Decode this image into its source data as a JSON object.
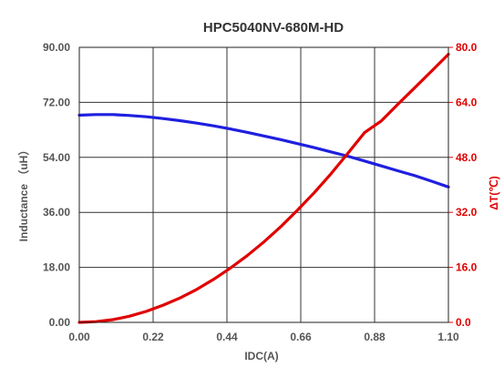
{
  "chart_data": {
    "type": "line",
    "title": "HPC5040NV-680M-HD",
    "xlabel": "IDC(A)",
    "ylabel": "Inductance （uH）",
    "y2label": "ΔT(℃)",
    "xlim": [
      0,
      1.1
    ],
    "ylim": [
      0,
      90
    ],
    "y2lim": [
      0,
      80
    ],
    "grid": true,
    "x_ticks": [
      "0.00",
      "0.22",
      "0.44",
      "0.66",
      "0.88",
      "1.10"
    ],
    "x_tick_values": [
      0,
      0.22,
      0.44,
      0.66,
      0.88,
      1.1
    ],
    "y_ticks": [
      "0.00",
      "18.00",
      "36.00",
      "54.00",
      "72.00",
      "90.00"
    ],
    "y_tick_values": [
      0,
      18,
      36,
      54,
      72,
      90
    ],
    "y2_ticks": [
      "0.0",
      "16.0",
      "32.0",
      "48.0",
      "64.0",
      "80.0"
    ],
    "y2_tick_values": [
      0,
      16,
      32,
      48,
      64,
      80
    ],
    "series": [
      {
        "axis": "left",
        "color": "#1f1fe0",
        "x": [
          0,
          0.05,
          0.1,
          0.15,
          0.2,
          0.25,
          0.3,
          0.35,
          0.4,
          0.45,
          0.5,
          0.55,
          0.6,
          0.65,
          0.7,
          0.75,
          0.8,
          0.85,
          0.9,
          0.95,
          1.0,
          1.05,
          1.1
        ],
        "values": [
          67.8,
          68.0,
          68.0,
          67.7,
          67.3,
          66.7,
          66.0,
          65.2,
          64.3,
          63.3,
          62.2,
          61.0,
          59.8,
          58.5,
          57.2,
          55.8,
          54.4,
          52.8,
          51.2,
          49.6,
          48.0,
          46.2,
          44.3
        ]
      },
      {
        "axis": "right",
        "color": "#e00000",
        "x": [
          0,
          0.05,
          0.1,
          0.15,
          0.2,
          0.25,
          0.3,
          0.35,
          0.4,
          0.45,
          0.5,
          0.55,
          0.6,
          0.65,
          0.7,
          0.75,
          0.8,
          0.85,
          0.9,
          0.95,
          1.0,
          1.05,
          1.1
        ],
        "values": [
          0.0,
          0.2,
          0.8,
          1.8,
          3.2,
          5.0,
          7.1,
          9.6,
          12.5,
          15.8,
          19.4,
          23.4,
          27.8,
          32.6,
          37.7,
          43.2,
          49.1,
          55.2,
          58.6,
          63.5,
          68.3,
          73.1,
          78.0
        ]
      }
    ]
  }
}
